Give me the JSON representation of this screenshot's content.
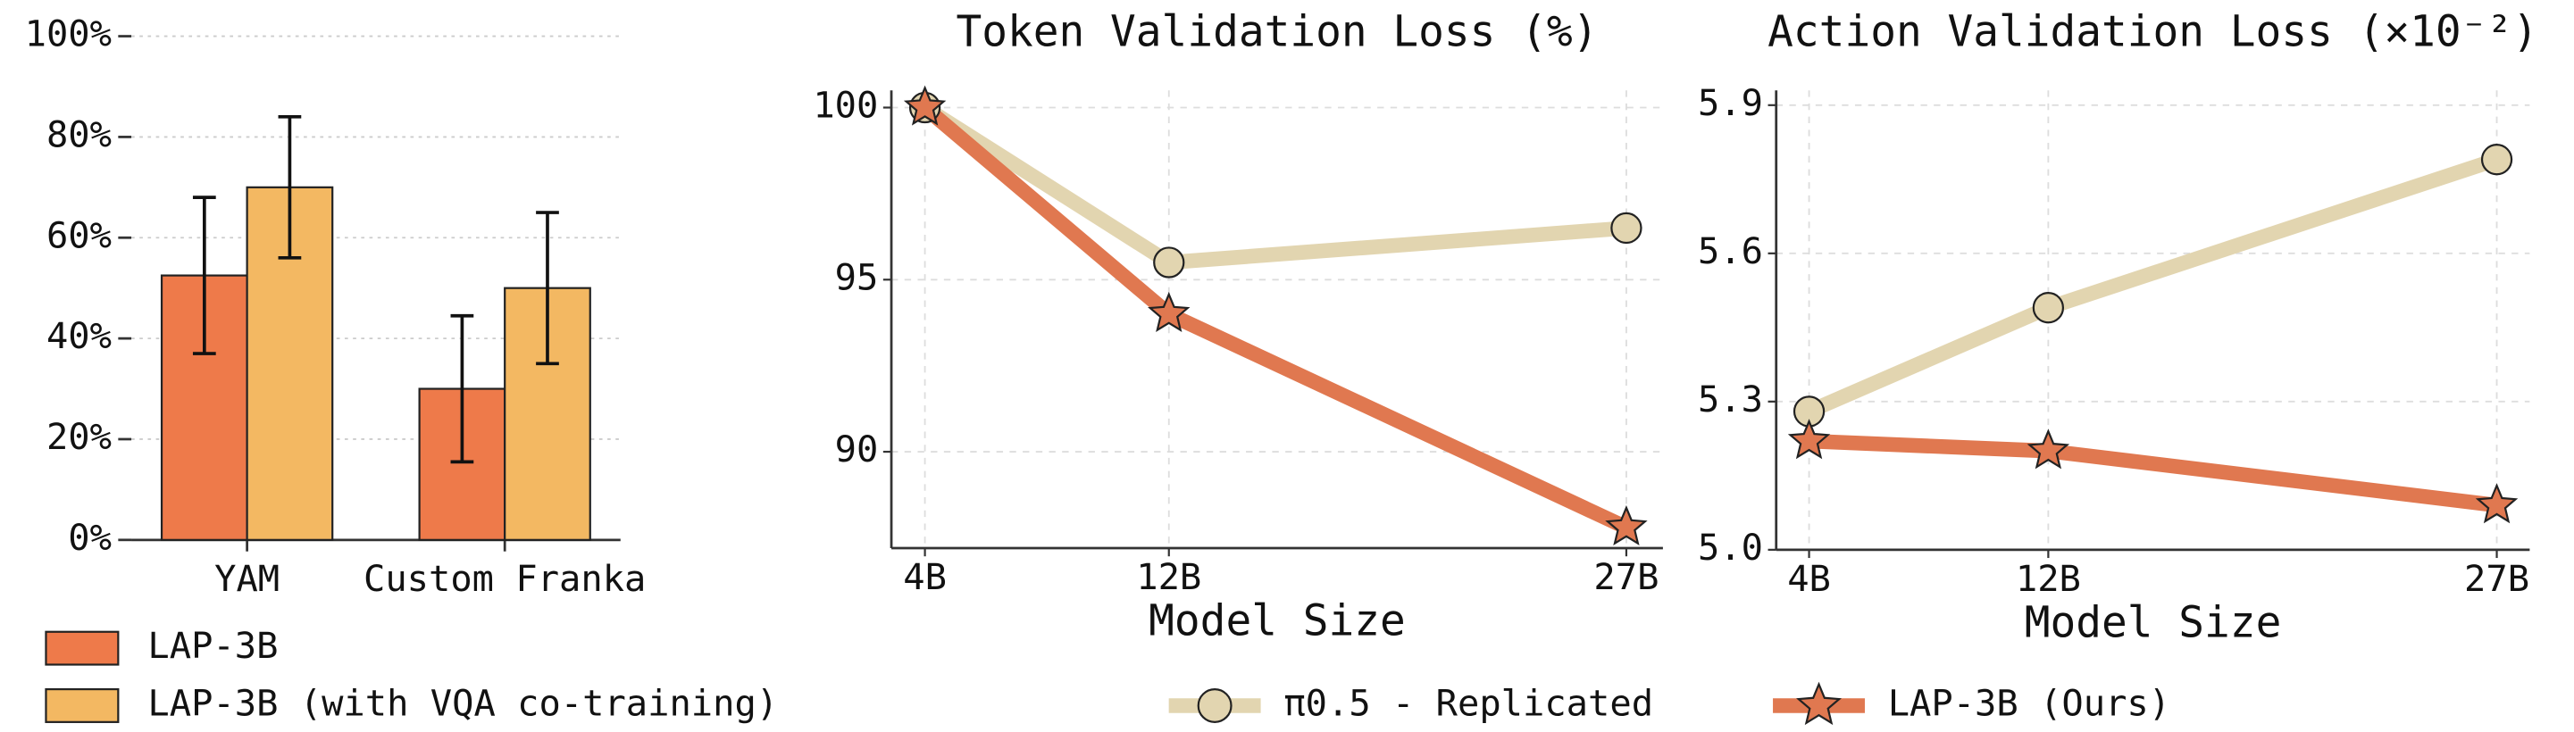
{
  "chart_data": [
    {
      "type": "bar",
      "categories": [
        "YAM",
        "Custom Franka"
      ],
      "series": [
        {
          "name": "LAP-3B",
          "color": "#ee7a4a",
          "values": [
            52.5,
            30
          ],
          "errors": [
            15.5,
            14.5
          ]
        },
        {
          "name": "LAP-3B (with VQA co-training)",
          "color": "#f3b862",
          "values": [
            70,
            50
          ],
          "errors": [
            14,
            15
          ]
        }
      ],
      "ylim": [
        0,
        100
      ],
      "yticks": [
        {
          "value": 0,
          "label": "0%"
        },
        {
          "value": 20,
          "label": "20%"
        },
        {
          "value": 40,
          "label": "40%"
        },
        {
          "value": 60,
          "label": "60%"
        },
        {
          "value": 80,
          "label": "80%"
        },
        {
          "value": 100,
          "label": "100%"
        }
      ],
      "grid": true
    },
    {
      "type": "line",
      "title": "Token Validation Loss (%)",
      "x_label": "Model Size",
      "x": [
        4,
        12,
        27
      ],
      "series": [
        {
          "name": "π0.5 - Replicated",
          "color": "#e2d5b0",
          "marker": "circle",
          "values": [
            100,
            95.5,
            96.5
          ]
        },
        {
          "name": "LAP-3B (Ours)",
          "color": "#e07850",
          "marker": "star",
          "values": [
            100,
            94,
            87.8
          ]
        }
      ],
      "xlim": [
        2.9,
        28.2
      ],
      "xticks": [
        {
          "value": 4,
          "label": "4B"
        },
        {
          "value": 12,
          "label": "12B"
        },
        {
          "value": 27,
          "label": "27B"
        }
      ],
      "ylim": [
        87.2,
        100.5
      ],
      "yticks": [
        90,
        95,
        100
      ],
      "grid": true
    },
    {
      "type": "line",
      "title": "Action Validation Loss (×10⁻²)",
      "x_label": "Model Size",
      "x": [
        4,
        12,
        27
      ],
      "series": [
        {
          "color": "#e2d5b0",
          "marker": "circle",
          "values": [
            5.28,
            5.49,
            5.79
          ]
        },
        {
          "color": "#e07850",
          "marker": "star",
          "values": [
            5.22,
            5.2,
            5.09
          ]
        }
      ],
      "xlim": [
        2.9,
        28.1
      ],
      "xticks": [
        {
          "value": 4,
          "label": "4B"
        },
        {
          "value": 12,
          "label": "12B"
        },
        {
          "value": 27,
          "label": "27B"
        }
      ],
      "ylim": [
        5.0,
        5.93
      ],
      "yticks": [
        {
          "value": 5,
          "label": "5.0"
        },
        5.3,
        5.6,
        5.9
      ],
      "grid": true
    }
  ]
}
